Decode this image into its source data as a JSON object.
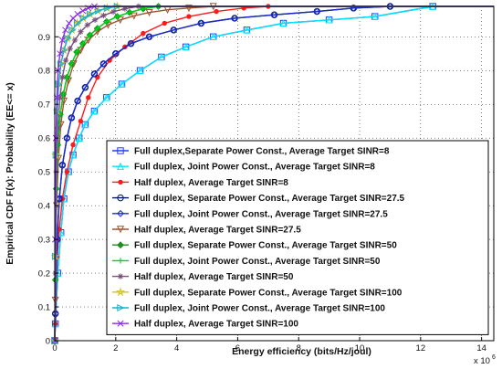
{
  "chart_data": {
    "type": "line",
    "title": "",
    "xlabel": "Energy efficiency (bits/Hz/joul)",
    "ylabel": "Empirical CDF F(x): Probability (EE<= x)",
    "x_scale_label": "x 10",
    "x_scale_exponent": "6",
    "xlim": [
      0,
      14.4
    ],
    "ylim": [
      0,
      0.99
    ],
    "xticks": [
      "0",
      "2",
      "4",
      "6",
      "8",
      "10",
      "12",
      "14"
    ],
    "yticks": [
      "0",
      "0.1",
      "0.2",
      "0.3",
      "0.4",
      "0.5",
      "0.6",
      "0.7",
      "0.8",
      "0.9"
    ],
    "grid": true,
    "legend_position": "lower-right",
    "series": [
      {
        "name": "Full duplex,Separate Power Const., Average Target SINR=8",
        "color": "#1f3cff",
        "marker": "square",
        "x": [
          0,
          0.02,
          0.1,
          0.2,
          0.3,
          0.45,
          0.6,
          0.8,
          1.0,
          1.3,
          1.7,
          2.2,
          2.8,
          3.5,
          4.3,
          5.2,
          6.3,
          7.5,
          9.0,
          10.5,
          12.4,
          14.4
        ],
        "y": [
          0,
          0.05,
          0.2,
          0.32,
          0.42,
          0.5,
          0.55,
          0.6,
          0.64,
          0.68,
          0.72,
          0.76,
          0.8,
          0.84,
          0.87,
          0.9,
          0.92,
          0.94,
          0.95,
          0.96,
          0.99,
          0.99
        ]
      },
      {
        "name": "Full duplex, Joint Power Const., Average Target SINR=8",
        "color": "#00e5ff",
        "marker": "triangle-up",
        "x": [
          0,
          0.02,
          0.1,
          0.2,
          0.3,
          0.45,
          0.6,
          0.8,
          1.0,
          1.3,
          1.7,
          2.2,
          2.8,
          3.5,
          4.3,
          5.2,
          6.3,
          7.5,
          9.0,
          10.5,
          12.4,
          14.4
        ],
        "y": [
          0,
          0.05,
          0.2,
          0.32,
          0.42,
          0.5,
          0.55,
          0.6,
          0.64,
          0.68,
          0.72,
          0.76,
          0.8,
          0.84,
          0.87,
          0.9,
          0.92,
          0.94,
          0.95,
          0.96,
          0.99,
          0.99
        ]
      },
      {
        "name": "Half duplex, Average Target SINR=8",
        "color": "#ff1a1a",
        "marker": "dot",
        "x": [
          0,
          0.02,
          0.08,
          0.15,
          0.25,
          0.4,
          0.6,
          0.85,
          1.1,
          1.4,
          1.8,
          2.3,
          2.9,
          3.6,
          4.4,
          5.3,
          6.2,
          7.0,
          14.4
        ],
        "y": [
          0,
          0.05,
          0.25,
          0.33,
          0.42,
          0.5,
          0.58,
          0.65,
          0.72,
          0.78,
          0.83,
          0.87,
          0.91,
          0.94,
          0.96,
          0.975,
          0.985,
          0.99,
          0.99
        ]
      },
      {
        "name": "Full duplex, Separate Power Const., Average Target SINR=27.5",
        "color": "#001a66",
        "marker": "circle",
        "x": [
          0,
          0.02,
          0.08,
          0.15,
          0.25,
          0.4,
          0.55,
          0.75,
          1.0,
          1.3,
          1.6,
          2.0,
          2.5,
          3.1,
          3.9,
          4.8,
          5.9,
          7.2,
          8.6,
          9.8,
          11.0,
          14.4
        ],
        "y": [
          0,
          0.08,
          0.3,
          0.42,
          0.52,
          0.6,
          0.66,
          0.71,
          0.75,
          0.79,
          0.82,
          0.85,
          0.88,
          0.9,
          0.92,
          0.94,
          0.955,
          0.965,
          0.975,
          0.985,
          0.99,
          0.99
        ]
      },
      {
        "name": "Full duplex, Joint Power Const., Average Target SINR=27.5",
        "color": "#1a2bcc",
        "marker": "diamond",
        "x": [
          0,
          0.02,
          0.08,
          0.15,
          0.25,
          0.4,
          0.55,
          0.75,
          1.0,
          1.3,
          1.6,
          2.0,
          2.5,
          3.1,
          3.9,
          4.8,
          5.9,
          7.2,
          8.6,
          9.8,
          11.0,
          14.4
        ],
        "y": [
          0,
          0.08,
          0.3,
          0.42,
          0.52,
          0.6,
          0.66,
          0.71,
          0.75,
          0.79,
          0.82,
          0.85,
          0.88,
          0.9,
          0.92,
          0.94,
          0.955,
          0.965,
          0.975,
          0.985,
          0.99,
          0.99
        ]
      },
      {
        "name": "Half duplex, Average Target SINR=27.5",
        "color": "#a0522d",
        "marker": "triangle-down",
        "x": [
          0,
          0.02,
          0.06,
          0.12,
          0.2,
          0.3,
          0.45,
          0.62,
          0.85,
          1.1,
          1.4,
          1.75,
          2.15,
          2.6,
          3.1,
          3.7,
          4.4,
          5.2,
          14.4
        ],
        "y": [
          0,
          0.12,
          0.4,
          0.54,
          0.64,
          0.71,
          0.77,
          0.82,
          0.86,
          0.89,
          0.915,
          0.935,
          0.95,
          0.962,
          0.972,
          0.98,
          0.985,
          0.99,
          0.99
        ]
      },
      {
        "name": "Full duplex, Separate Power Const., Average Target SINR=50",
        "color": "#1f8f1f",
        "marker": "diamond-filled",
        "x": [
          0,
          0.02,
          0.05,
          0.1,
          0.18,
          0.28,
          0.4,
          0.55,
          0.72,
          0.92,
          1.15,
          1.4,
          1.7,
          2.05,
          2.45,
          2.9,
          3.4,
          14.4
        ],
        "y": [
          0,
          0.18,
          0.45,
          0.58,
          0.67,
          0.73,
          0.78,
          0.82,
          0.855,
          0.88,
          0.905,
          0.925,
          0.945,
          0.96,
          0.972,
          0.983,
          0.99,
          0.99
        ]
      },
      {
        "name": "Full duplex, Joint Power Const., Average Target SINR=50",
        "color": "#00d21a",
        "marker": "plus",
        "x": [
          0,
          0.02,
          0.05,
          0.1,
          0.18,
          0.28,
          0.4,
          0.55,
          0.72,
          0.92,
          1.15,
          1.4,
          1.7,
          2.05,
          2.45,
          2.9,
          3.4,
          14.4
        ],
        "y": [
          0,
          0.18,
          0.45,
          0.58,
          0.67,
          0.73,
          0.78,
          0.82,
          0.855,
          0.88,
          0.905,
          0.925,
          0.945,
          0.96,
          0.972,
          0.983,
          0.99,
          0.99
        ]
      },
      {
        "name": "Half duplex, Average Target SINR=50",
        "color": "#7a4f7a",
        "marker": "asterisk",
        "x": [
          0,
          0.02,
          0.05,
          0.1,
          0.17,
          0.25,
          0.36,
          0.5,
          0.66,
          0.85,
          1.07,
          1.32,
          1.6,
          1.92,
          2.3,
          2.75,
          14.4
        ],
        "y": [
          0,
          0.2,
          0.5,
          0.63,
          0.72,
          0.78,
          0.83,
          0.865,
          0.89,
          0.915,
          0.935,
          0.95,
          0.963,
          0.974,
          0.983,
          0.99,
          0.99
        ]
      },
      {
        "name": "Full duplex, Separate Power Const., Average Target SINR=100",
        "color": "#d4c21a",
        "marker": "star",
        "x": [
          0,
          0.02,
          0.04,
          0.08,
          0.13,
          0.2,
          0.3,
          0.42,
          0.57,
          0.74,
          0.94,
          1.16,
          1.42,
          1.72,
          2.05,
          14.4
        ],
        "y": [
          0,
          0.25,
          0.55,
          0.68,
          0.76,
          0.82,
          0.86,
          0.895,
          0.92,
          0.94,
          0.955,
          0.967,
          0.977,
          0.985,
          0.99,
          0.99
        ]
      },
      {
        "name": "Full duplex, Joint Power Const., Average Target SINR=100",
        "color": "#1ab3c9",
        "marker": "triangle-right",
        "x": [
          0,
          0.02,
          0.04,
          0.08,
          0.13,
          0.2,
          0.3,
          0.42,
          0.57,
          0.74,
          0.94,
          1.16,
          1.42,
          1.72,
          2.05,
          14.4
        ],
        "y": [
          0,
          0.25,
          0.55,
          0.68,
          0.76,
          0.82,
          0.86,
          0.895,
          0.92,
          0.94,
          0.955,
          0.967,
          0.977,
          0.985,
          0.99,
          0.99
        ]
      },
      {
        "name": "Half duplex, Average Target SINR=100",
        "color": "#8a2be2",
        "marker": "cross",
        "x": [
          0,
          0.02,
          0.04,
          0.07,
          0.11,
          0.17,
          0.25,
          0.35,
          0.47,
          0.6,
          0.75,
          0.92,
          1.1,
          1.3,
          14.4
        ],
        "y": [
          0,
          0.3,
          0.6,
          0.72,
          0.8,
          0.85,
          0.89,
          0.92,
          0.94,
          0.955,
          0.967,
          0.977,
          0.985,
          0.99,
          0.99
        ]
      }
    ]
  }
}
